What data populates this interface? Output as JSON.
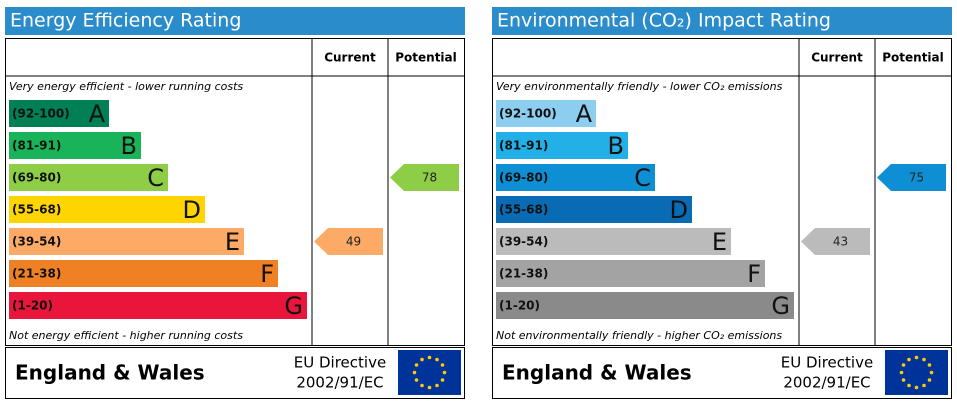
{
  "panels": [
    {
      "title": "Energy Efficiency Rating",
      "columns": [
        "Current",
        "Potential"
      ],
      "top_note": "Very energy efficient - lower running costs",
      "bottom_note": "Not energy efficient - higher running costs",
      "bands": [
        {
          "range": "(92-100)",
          "letter": "A",
          "color": "#008054"
        },
        {
          "range": "(81-91)",
          "letter": "B",
          "color": "#19b459"
        },
        {
          "range": "(69-80)",
          "letter": "C",
          "color": "#8dce46"
        },
        {
          "range": "(55-68)",
          "letter": "D",
          "color": "#ffd500"
        },
        {
          "range": "(39-54)",
          "letter": "E",
          "color": "#fcaa65"
        },
        {
          "range": "(21-38)",
          "letter": "F",
          "color": "#ef8023"
        },
        {
          "range": "(1-20)",
          "letter": "G",
          "color": "#e9153b"
        }
      ],
      "current": 49,
      "potential": 78,
      "footer": "England & Wales",
      "directive": [
        "EU Directive",
        "2002/91/EC"
      ]
    },
    {
      "title": "Environmental (CO₂) Impact Rating",
      "columns": [
        "Current",
        "Potential"
      ],
      "top_note": "Very environmentally friendly - lower CO₂ emissions",
      "bottom_note": "Not environmentally friendly - higher CO₂ emissions",
      "bands": [
        {
          "range": "(92-100)",
          "letter": "A",
          "color": "#8ccdf0"
        },
        {
          "range": "(81-91)",
          "letter": "B",
          "color": "#22b0e6"
        },
        {
          "range": "(69-80)",
          "letter": "C",
          "color": "#0e8fd4"
        },
        {
          "range": "(55-68)",
          "letter": "D",
          "color": "#0a6bb5"
        },
        {
          "range": "(39-54)",
          "letter": "E",
          "color": "#bbbbbb"
        },
        {
          "range": "(21-38)",
          "letter": "F",
          "color": "#a3a3a3"
        },
        {
          "range": "(1-20)",
          "letter": "G",
          "color": "#8a8a8a"
        }
      ],
      "current": 43,
      "potential": 75,
      "footer": "England & Wales",
      "directive": [
        "EU Directive",
        "2002/91/EC"
      ]
    }
  ]
}
